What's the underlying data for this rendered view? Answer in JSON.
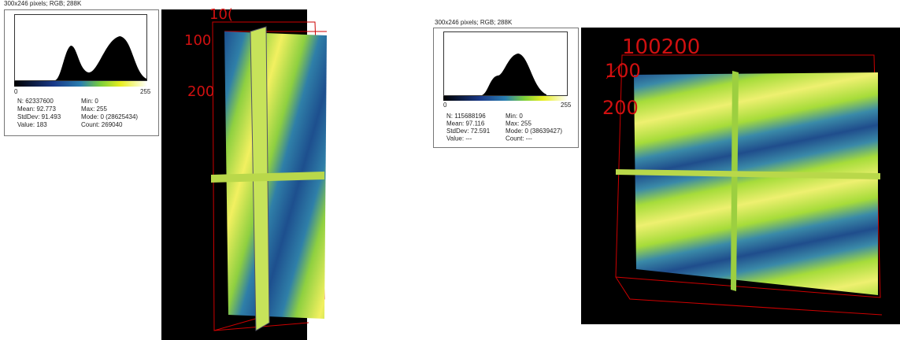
{
  "panels": [
    {
      "header": "300x246 pixels; RGB; 288K",
      "axis_min": "0",
      "axis_max": "255",
      "stats": [
        [
          "N: 62337600",
          "Min: 0"
        ],
        [
          "Mean: 92.773",
          "Max: 255"
        ],
        [
          "StdDev: 91.493",
          "Mode: 0 (28625434)"
        ],
        [
          "Value: 183",
          "Count: 269040"
        ]
      ],
      "volume_labels": [
        "10(",
        "100",
        "200"
      ]
    },
    {
      "header": "300x246 pixels; RGB; 288K",
      "axis_min": "0",
      "axis_max": "255",
      "stats": [
        [
          "N: 115688196",
          "Min: 0"
        ],
        [
          "Mean: 97.116",
          "Max: 255"
        ],
        [
          "StdDev: 72.591",
          "Mode: 0 (38639427)"
        ],
        [
          "Value: ---",
          "Count: ---"
        ]
      ],
      "volume_labels": [
        "100200",
        "100",
        "200"
      ]
    }
  ]
}
